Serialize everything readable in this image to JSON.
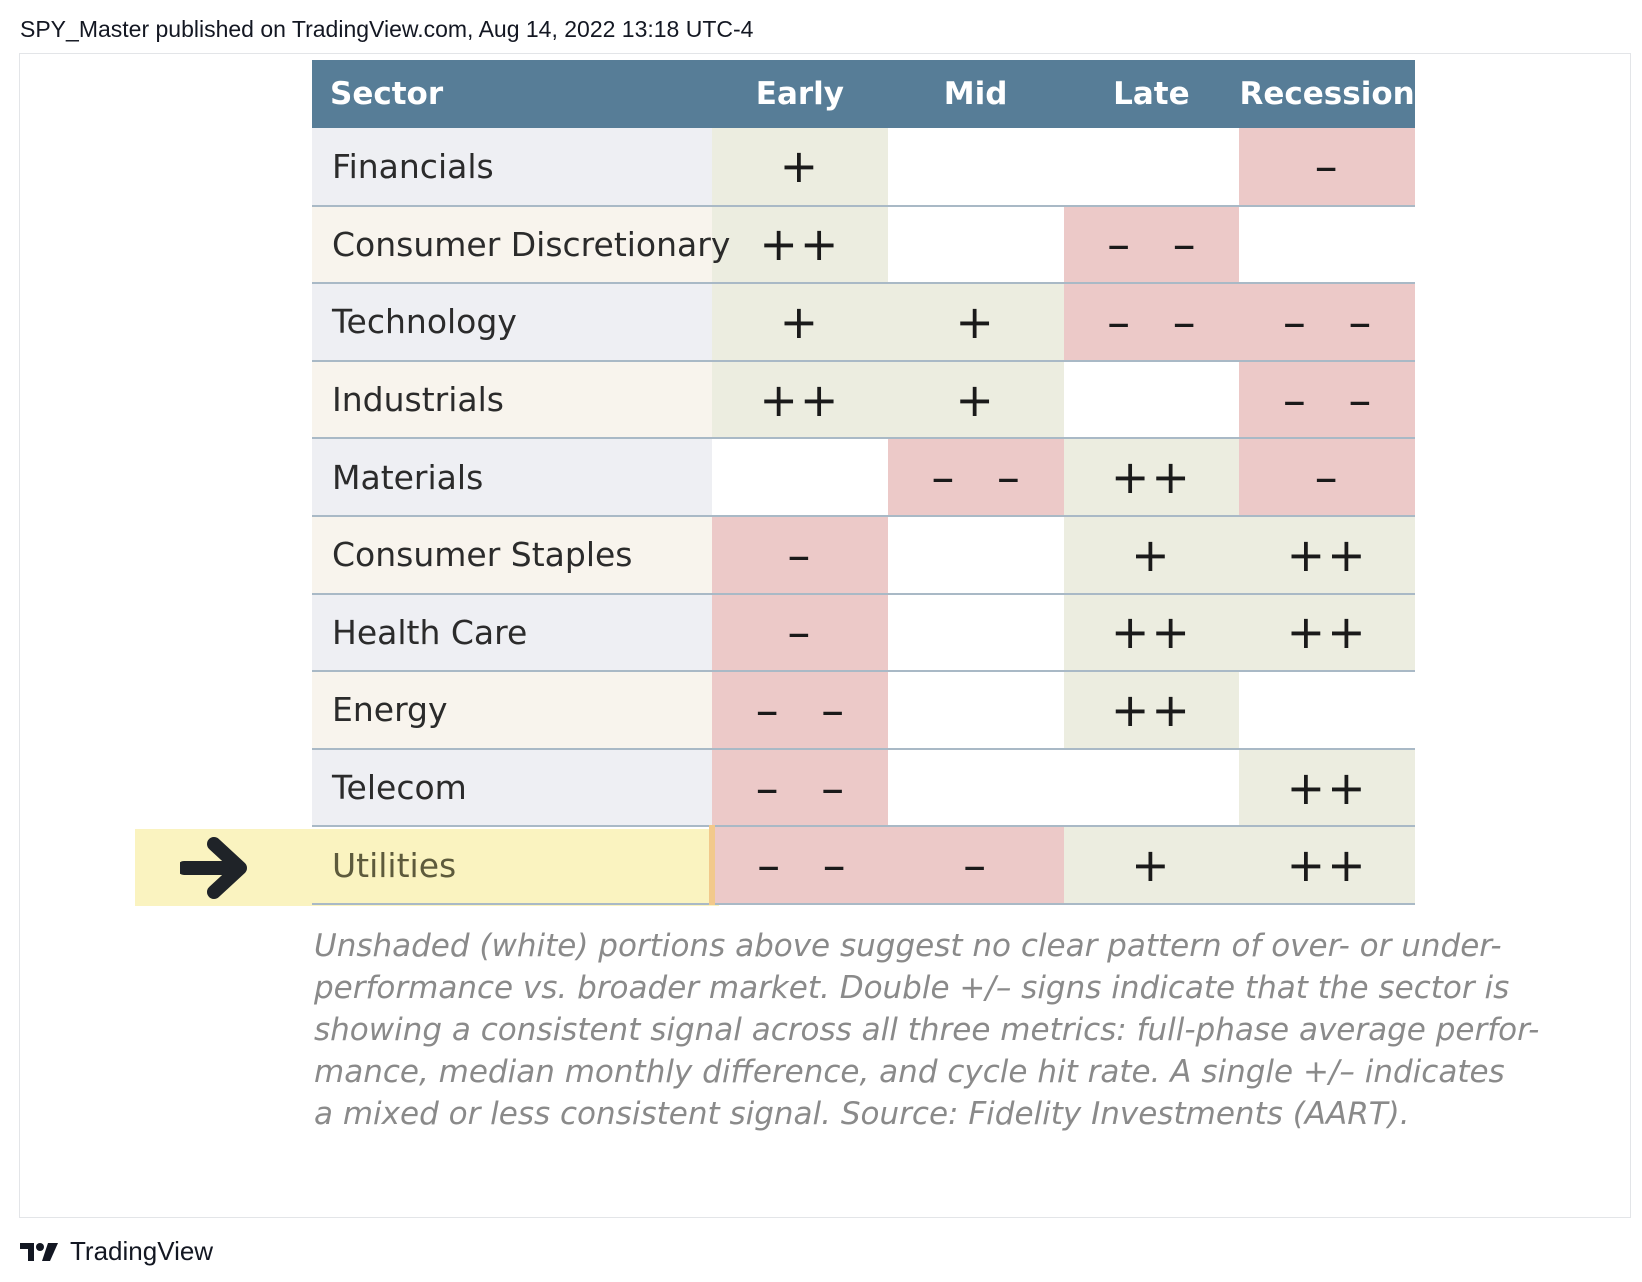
{
  "header": {
    "text": "SPY_Master published on TradingView.com, Aug 14, 2022 13:18 UTC-4"
  },
  "table": {
    "columns": [
      "Sector",
      "Early",
      "Mid",
      "Late",
      "Recession"
    ],
    "rows": [
      {
        "sector": "Financials",
        "cells": [
          {
            "sign": "+",
            "tone": "pos"
          },
          {
            "sign": "",
            "tone": "neu"
          },
          {
            "sign": "",
            "tone": "neu"
          },
          {
            "sign": "–",
            "tone": "neg"
          }
        ]
      },
      {
        "sector": "Consumer Discretionary",
        "cells": [
          {
            "sign": "++",
            "tone": "pos"
          },
          {
            "sign": "",
            "tone": "neu"
          },
          {
            "sign": "– –",
            "tone": "neg"
          },
          {
            "sign": "",
            "tone": "neu"
          }
        ]
      },
      {
        "sector": "Technology",
        "cells": [
          {
            "sign": "+",
            "tone": "pos"
          },
          {
            "sign": "+",
            "tone": "pos"
          },
          {
            "sign": "– –",
            "tone": "neg"
          },
          {
            "sign": "– –",
            "tone": "neg"
          }
        ]
      },
      {
        "sector": "Industrials",
        "cells": [
          {
            "sign": "++",
            "tone": "pos"
          },
          {
            "sign": "+",
            "tone": "pos"
          },
          {
            "sign": "",
            "tone": "neu"
          },
          {
            "sign": "– –",
            "tone": "neg"
          }
        ]
      },
      {
        "sector": "Materials",
        "cells": [
          {
            "sign": "",
            "tone": "neu"
          },
          {
            "sign": "– –",
            "tone": "neg"
          },
          {
            "sign": "++",
            "tone": "pos"
          },
          {
            "sign": "–",
            "tone": "neg"
          }
        ]
      },
      {
        "sector": "Consumer Staples",
        "cells": [
          {
            "sign": "–",
            "tone": "neg"
          },
          {
            "sign": "",
            "tone": "neu"
          },
          {
            "sign": "+",
            "tone": "pos"
          },
          {
            "sign": "++",
            "tone": "pos"
          }
        ]
      },
      {
        "sector": "Health Care",
        "cells": [
          {
            "sign": "–",
            "tone": "neg"
          },
          {
            "sign": "",
            "tone": "neu"
          },
          {
            "sign": "++",
            "tone": "pos"
          },
          {
            "sign": "++",
            "tone": "pos"
          }
        ]
      },
      {
        "sector": "Energy",
        "cells": [
          {
            "sign": "– –",
            "tone": "neg"
          },
          {
            "sign": "",
            "tone": "neu"
          },
          {
            "sign": "++",
            "tone": "pos"
          },
          {
            "sign": "",
            "tone": "neu"
          }
        ]
      },
      {
        "sector": "Telecom",
        "cells": [
          {
            "sign": "– –",
            "tone": "neg"
          },
          {
            "sign": "",
            "tone": "neu"
          },
          {
            "sign": "",
            "tone": "neu"
          },
          {
            "sign": "++",
            "tone": "pos"
          }
        ]
      },
      {
        "sector": "Utilities",
        "highlighted": true,
        "cells": [
          {
            "sign": "– –",
            "tone": "neg"
          },
          {
            "sign": "–",
            "tone": "neg"
          },
          {
            "sign": "+",
            "tone": "pos"
          },
          {
            "sign": "++",
            "tone": "pos"
          }
        ]
      }
    ]
  },
  "footnote": {
    "lines": [
      "Unshaded (white) portions above suggest no clear pattern of over- or under-",
      "performance vs. broader market. Double +/– signs indicate that the sector is",
      "showing a consistent signal across all three metrics: full-phase average perfor-",
      "mance, median monthly difference, and cycle hit rate. A single +/– indicates",
      "a mixed or less consistent signal. Source: Fidelity Investments (AART)."
    ]
  },
  "brand": {
    "name": "TradingView",
    "icon": "tradingview-logo-icon"
  },
  "annotation": {
    "icon": "arrow-right-icon"
  },
  "colors": {
    "header_bg": "#577d97",
    "positive": "#ecede0",
    "negative": "#ecc9c8",
    "neutral": "#ffffff",
    "highlight": "#faf3c0",
    "footnote_text": "#8a8a8a"
  }
}
